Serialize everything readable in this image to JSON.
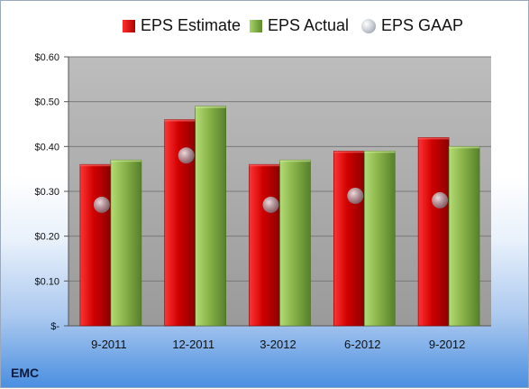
{
  "company": "EMC",
  "colors": {
    "estimate": "#d00000",
    "actual": "#8ab44a",
    "gaap": "#a9afb8",
    "plot_area_top": "#bdbdbd",
    "plot_area_bottom": "#9a9a9a"
  },
  "chart_data": {
    "type": "bar",
    "title": "",
    "xlabel": "",
    "ylabel": "",
    "categories": [
      "9-2011",
      "12-2011",
      "3-2012",
      "6-2012",
      "9-2012"
    ],
    "series": [
      {
        "name": "EPS Estimate",
        "type": "bar",
        "values": [
          0.36,
          0.46,
          0.36,
          0.39,
          0.42
        ]
      },
      {
        "name": "EPS Actual",
        "type": "bar",
        "values": [
          0.37,
          0.49,
          0.37,
          0.39,
          0.4
        ]
      },
      {
        "name": "EPS GAAP",
        "type": "marker",
        "values": [
          0.27,
          0.38,
          0.27,
          0.29,
          0.28
        ]
      }
    ],
    "ylim": [
      0,
      0.6
    ],
    "yticks": [
      0,
      0.1,
      0.2,
      0.3,
      0.4,
      0.5,
      0.6
    ],
    "ytick_labels": [
      "$-",
      "$0.10",
      "$0.20",
      "$0.30",
      "$0.40",
      "$0.50",
      "$0.60"
    ],
    "grid": true,
    "legend": "top"
  }
}
